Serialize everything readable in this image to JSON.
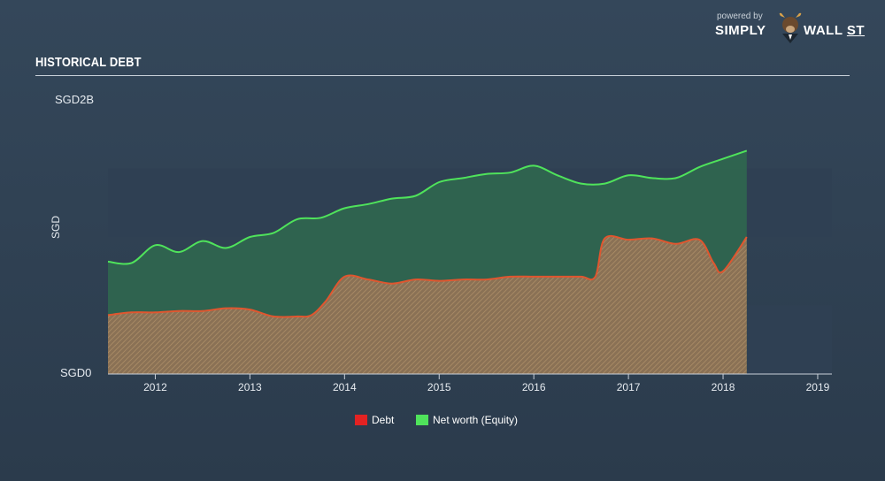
{
  "header": {
    "title": "HISTORICAL DEBT"
  },
  "brand": {
    "powered_by": "powered by",
    "name_left": "SIMPLY",
    "name_right": "WALL",
    "name_suffix": "ST"
  },
  "colors": {
    "debt_line": "#e0562f",
    "debt_fill": "#9a7a5c",
    "equity_line": "#4fe35b",
    "equity_fill": "#2f6a4f",
    "legend_debt": "#e32222",
    "legend_equity": "#4fe35b",
    "band": "#2f4053",
    "axis": "#c9d1da"
  },
  "chart_data": {
    "type": "area",
    "title": "HISTORICAL DEBT",
    "ylabel": "SGD",
    "ytick_labels": [
      "SGD0",
      "SGD2B"
    ],
    "ylim": [
      0,
      2.0
    ],
    "xlim": [
      2011.5,
      2019.15
    ],
    "x_ticks": [
      2012,
      2013,
      2014,
      2015,
      2016,
      2017,
      2018,
      2019
    ],
    "grid": false,
    "legend_position": "bottom-center",
    "series": [
      {
        "name": "Debt",
        "x": [
          2011.5,
          2011.75,
          2012.0,
          2012.25,
          2012.5,
          2012.75,
          2013.0,
          2013.25,
          2013.5,
          2013.65,
          2013.8,
          2014.0,
          2014.25,
          2014.5,
          2014.75,
          2015.0,
          2015.25,
          2015.5,
          2015.75,
          2016.0,
          2016.25,
          2016.5,
          2016.65,
          2016.75,
          2017.0,
          2017.25,
          2017.5,
          2017.75,
          2017.9,
          2018.0,
          2018.25
        ],
        "values": [
          0.43,
          0.45,
          0.45,
          0.46,
          0.46,
          0.48,
          0.47,
          0.42,
          0.42,
          0.43,
          0.53,
          0.71,
          0.69,
          0.66,
          0.69,
          0.68,
          0.69,
          0.69,
          0.71,
          0.71,
          0.71,
          0.71,
          0.71,
          0.99,
          0.98,
          0.99,
          0.95,
          0.98,
          0.81,
          0.75,
          1.0
        ]
      },
      {
        "name": "Net worth (Equity)",
        "x": [
          2011.5,
          2011.75,
          2012.0,
          2012.25,
          2012.5,
          2012.75,
          2013.0,
          2013.25,
          2013.5,
          2013.75,
          2014.0,
          2014.25,
          2014.5,
          2014.75,
          2015.0,
          2015.25,
          2015.5,
          2015.75,
          2016.0,
          2016.25,
          2016.5,
          2016.75,
          2017.0,
          2017.25,
          2017.5,
          2017.75,
          2018.0,
          2018.25
        ],
        "values": [
          0.82,
          0.81,
          0.94,
          0.89,
          0.97,
          0.92,
          1.0,
          1.03,
          1.13,
          1.14,
          1.21,
          1.24,
          1.28,
          1.3,
          1.4,
          1.43,
          1.46,
          1.47,
          1.52,
          1.45,
          1.39,
          1.39,
          1.45,
          1.43,
          1.43,
          1.51,
          1.57,
          1.63
        ]
      }
    ]
  }
}
